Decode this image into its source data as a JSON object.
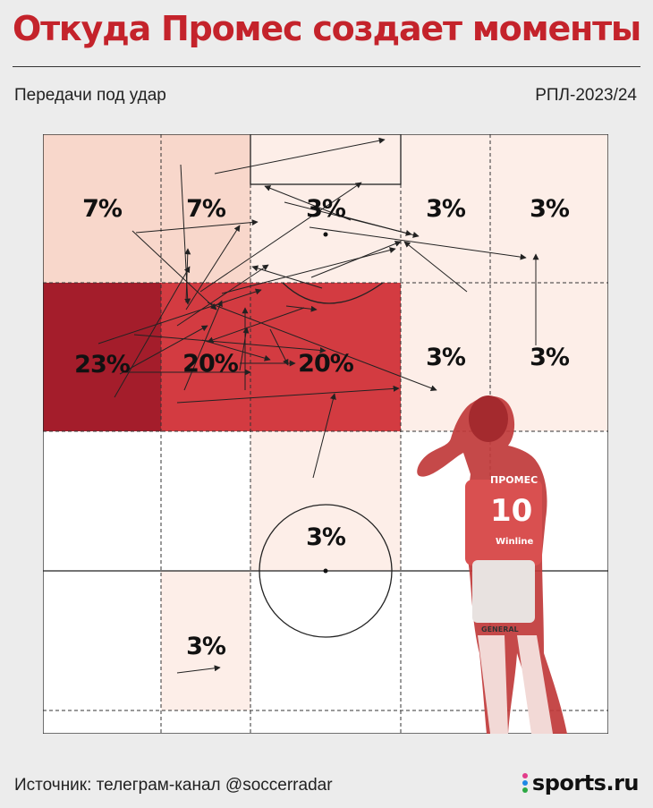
{
  "title": "Откуда Промес создает моменты",
  "subtitle": "Передачи под удар",
  "season": "РПЛ-2023/24",
  "source": "Источник: телеграм-канал @soccerradar",
  "logo": "sports.ru",
  "colors": {
    "title": "#c4232b",
    "zone_max": "#a41d2b",
    "zone_high": "#d33b41",
    "zone_light": "#f8d7cb",
    "zone_faint": "#fdeee8"
  },
  "zones": [
    {
      "id": "top-left",
      "label": "7%",
      "value": 7
    },
    {
      "id": "top-left-inner",
      "label": "7%",
      "value": 7
    },
    {
      "id": "top-center",
      "label": "3%",
      "value": 3
    },
    {
      "id": "top-right-inner",
      "label": "3%",
      "value": 3
    },
    {
      "id": "top-right",
      "label": "3%",
      "value": 3
    },
    {
      "id": "second-left",
      "label": "23%",
      "value": 23
    },
    {
      "id": "second-left-inner",
      "label": "20%",
      "value": 20
    },
    {
      "id": "second-center",
      "label": "20%",
      "value": 20
    },
    {
      "id": "second-right-inner",
      "label": "3%",
      "value": 3
    },
    {
      "id": "second-right",
      "label": "3%",
      "value": 3
    },
    {
      "id": "center-circle",
      "label": "3%",
      "value": 3
    },
    {
      "id": "lower-left-inner",
      "label": "3%",
      "value": 3
    }
  ],
  "player_image": {
    "name_on_shirt": "ПРОМЕС",
    "number": "10",
    "sponsor": "Winline",
    "kit_brand": "GENERAL"
  }
}
